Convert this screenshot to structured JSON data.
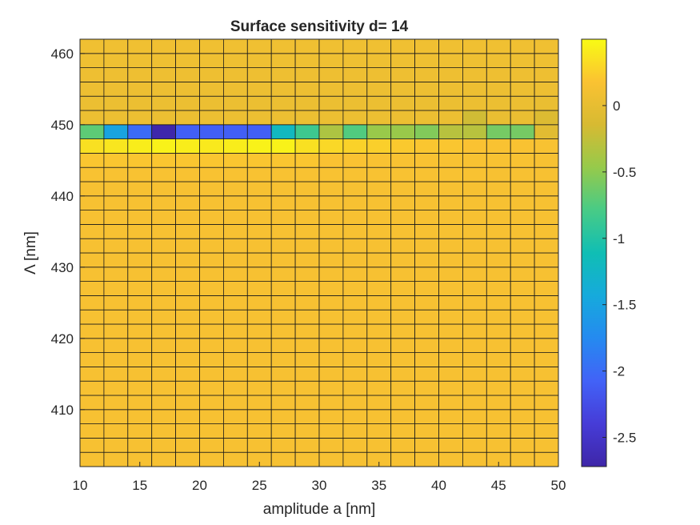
{
  "chart_data": {
    "type": "heatmap",
    "title": "Surface sensitivity d= 14",
    "xlabel": "amplitude a [nm]",
    "ylabel": "Λ [nm]",
    "x_ticks": [
      10,
      15,
      20,
      25,
      30,
      35,
      40,
      45,
      50
    ],
    "y_ticks": [
      410,
      420,
      430,
      440,
      450,
      460
    ],
    "colorbar_ticks": [
      "0",
      "-0.5",
      "-1",
      "-1.5",
      "-2",
      "-2.5"
    ],
    "colorbar_tick_values": [
      0,
      -0.5,
      -1,
      -1.5,
      -2,
      -2.5
    ],
    "clim": [
      -2.72,
      0.5
    ],
    "colormap": "parula",
    "xlim": [
      10,
      50
    ],
    "ylim": [
      402,
      462
    ],
    "x_edges": [
      10,
      12,
      14,
      16,
      18,
      20,
      22,
      24,
      26,
      28,
      30,
      32,
      34,
      36,
      38,
      40,
      42,
      44,
      46,
      48,
      50
    ],
    "y_edges": [
      402,
      404,
      406,
      408,
      410,
      412,
      414,
      416,
      418,
      420,
      422,
      424,
      426,
      428,
      430,
      432,
      434,
      436,
      438,
      440,
      442,
      444,
      446,
      448,
      450,
      452,
      454,
      456,
      458,
      460,
      462
    ],
    "y_rows_note_free": true,
    "rows": [
      {
        "y": 402,
        "values": [
          0.15,
          0.15,
          0.15,
          0.15,
          0.15,
          0.15,
          0.15,
          0.15,
          0.15,
          0.15,
          0.15,
          0.15,
          0.15,
          0.15,
          0.15,
          0.15,
          0.15,
          0.15,
          0.15,
          0.15
        ]
      },
      {
        "y": 404,
        "values": [
          0.15,
          0.15,
          0.15,
          0.15,
          0.15,
          0.15,
          0.15,
          0.15,
          0.15,
          0.15,
          0.15,
          0.15,
          0.15,
          0.15,
          0.15,
          0.15,
          0.15,
          0.15,
          0.15,
          0.15
        ]
      },
      {
        "y": 406,
        "values": [
          0.15,
          0.15,
          0.15,
          0.15,
          0.15,
          0.15,
          0.15,
          0.15,
          0.15,
          0.15,
          0.15,
          0.15,
          0.15,
          0.15,
          0.15,
          0.15,
          0.15,
          0.15,
          0.15,
          0.15
        ]
      },
      {
        "y": 408,
        "values": [
          0.15,
          0.15,
          0.15,
          0.15,
          0.15,
          0.15,
          0.15,
          0.15,
          0.15,
          0.15,
          0.15,
          0.15,
          0.15,
          0.15,
          0.15,
          0.15,
          0.15,
          0.15,
          0.15,
          0.15
        ]
      },
      {
        "y": 410,
        "values": [
          0.15,
          0.15,
          0.15,
          0.15,
          0.15,
          0.15,
          0.15,
          0.15,
          0.15,
          0.15,
          0.15,
          0.15,
          0.15,
          0.15,
          0.15,
          0.15,
          0.15,
          0.15,
          0.15,
          0.15
        ]
      },
      {
        "y": 412,
        "values": [
          0.15,
          0.15,
          0.15,
          0.15,
          0.15,
          0.15,
          0.15,
          0.15,
          0.15,
          0.15,
          0.15,
          0.15,
          0.15,
          0.15,
          0.15,
          0.15,
          0.15,
          0.15,
          0.15,
          0.15
        ]
      },
      {
        "y": 414,
        "values": [
          0.15,
          0.15,
          0.15,
          0.15,
          0.15,
          0.15,
          0.15,
          0.15,
          0.15,
          0.15,
          0.15,
          0.15,
          0.15,
          0.15,
          0.15,
          0.15,
          0.15,
          0.15,
          0.15,
          0.15
        ]
      },
      {
        "y": 416,
        "values": [
          0.15,
          0.15,
          0.15,
          0.15,
          0.15,
          0.15,
          0.15,
          0.15,
          0.15,
          0.15,
          0.15,
          0.15,
          0.15,
          0.15,
          0.15,
          0.15,
          0.15,
          0.15,
          0.15,
          0.15
        ]
      },
      {
        "y": 418,
        "values": [
          0.15,
          0.15,
          0.15,
          0.15,
          0.15,
          0.15,
          0.15,
          0.15,
          0.15,
          0.15,
          0.15,
          0.15,
          0.15,
          0.15,
          0.15,
          0.15,
          0.15,
          0.15,
          0.15,
          0.15
        ]
      },
      {
        "y": 420,
        "values": [
          0.15,
          0.15,
          0.15,
          0.15,
          0.15,
          0.15,
          0.15,
          0.15,
          0.15,
          0.15,
          0.15,
          0.15,
          0.15,
          0.15,
          0.15,
          0.15,
          0.15,
          0.15,
          0.15,
          0.15
        ]
      },
      {
        "y": 422,
        "values": [
          0.15,
          0.15,
          0.15,
          0.15,
          0.15,
          0.15,
          0.15,
          0.15,
          0.15,
          0.15,
          0.15,
          0.15,
          0.15,
          0.15,
          0.15,
          0.15,
          0.15,
          0.15,
          0.15,
          0.15
        ]
      },
      {
        "y": 424,
        "values": [
          0.15,
          0.15,
          0.15,
          0.15,
          0.15,
          0.15,
          0.15,
          0.15,
          0.15,
          0.15,
          0.15,
          0.15,
          0.15,
          0.15,
          0.15,
          0.15,
          0.15,
          0.15,
          0.15,
          0.15
        ]
      },
      {
        "y": 426,
        "values": [
          0.15,
          0.15,
          0.15,
          0.15,
          0.15,
          0.15,
          0.15,
          0.15,
          0.15,
          0.15,
          0.15,
          0.15,
          0.15,
          0.15,
          0.15,
          0.15,
          0.15,
          0.15,
          0.15,
          0.15
        ]
      },
      {
        "y": 428,
        "values": [
          0.15,
          0.15,
          0.15,
          0.15,
          0.15,
          0.15,
          0.15,
          0.15,
          0.15,
          0.15,
          0.15,
          0.15,
          0.15,
          0.15,
          0.15,
          0.15,
          0.15,
          0.15,
          0.15,
          0.15
        ]
      },
      {
        "y": 430,
        "values": [
          0.15,
          0.15,
          0.15,
          0.15,
          0.15,
          0.15,
          0.15,
          0.15,
          0.15,
          0.15,
          0.15,
          0.15,
          0.15,
          0.15,
          0.15,
          0.15,
          0.15,
          0.15,
          0.15,
          0.15
        ]
      },
      {
        "y": 432,
        "values": [
          0.15,
          0.15,
          0.15,
          0.15,
          0.15,
          0.15,
          0.15,
          0.15,
          0.15,
          0.15,
          0.15,
          0.15,
          0.15,
          0.15,
          0.15,
          0.15,
          0.15,
          0.15,
          0.15,
          0.15
        ]
      },
      {
        "y": 434,
        "values": [
          0.15,
          0.15,
          0.15,
          0.15,
          0.15,
          0.15,
          0.15,
          0.15,
          0.15,
          0.15,
          0.15,
          0.15,
          0.15,
          0.15,
          0.15,
          0.15,
          0.15,
          0.15,
          0.15,
          0.15
        ]
      },
      {
        "y": 436,
        "values": [
          0.15,
          0.15,
          0.15,
          0.15,
          0.15,
          0.15,
          0.15,
          0.15,
          0.15,
          0.15,
          0.15,
          0.15,
          0.15,
          0.15,
          0.15,
          0.15,
          0.15,
          0.15,
          0.15,
          0.15
        ]
      },
      {
        "y": 438,
        "values": [
          0.15,
          0.15,
          0.15,
          0.15,
          0.15,
          0.15,
          0.15,
          0.15,
          0.15,
          0.15,
          0.15,
          0.15,
          0.15,
          0.15,
          0.15,
          0.15,
          0.15,
          0.15,
          0.15,
          0.15
        ]
      },
      {
        "y": 440,
        "values": [
          0.15,
          0.15,
          0.15,
          0.15,
          0.15,
          0.15,
          0.15,
          0.15,
          0.15,
          0.15,
          0.15,
          0.15,
          0.15,
          0.15,
          0.15,
          0.15,
          0.15,
          0.15,
          0.15,
          0.15
        ]
      },
      {
        "y": 442,
        "values": [
          0.16,
          0.16,
          0.16,
          0.16,
          0.16,
          0.16,
          0.16,
          0.16,
          0.16,
          0.16,
          0.16,
          0.16,
          0.16,
          0.16,
          0.16,
          0.16,
          0.16,
          0.15,
          0.15,
          0.15
        ]
      },
      {
        "y": 444,
        "values": [
          0.2,
          0.2,
          0.2,
          0.2,
          0.2,
          0.2,
          0.2,
          0.2,
          0.2,
          0.2,
          0.18,
          0.18,
          0.17,
          0.17,
          0.17,
          0.16,
          0.16,
          0.16,
          0.16,
          0.15
        ]
      },
      {
        "y": 446,
        "values": [
          0.35,
          0.38,
          0.42,
          0.45,
          0.42,
          0.4,
          0.42,
          0.45,
          0.45,
          0.35,
          0.3,
          0.27,
          0.25,
          0.22,
          0.2,
          0.2,
          0.18,
          0.17,
          0.17,
          0.16
        ]
      },
      {
        "y": 448,
        "values": [
          -0.7,
          -1.5,
          -2.0,
          -2.7,
          -2.1,
          -2.1,
          -2.1,
          -2.1,
          -1.2,
          -0.85,
          -0.35,
          -0.75,
          -0.45,
          -0.45,
          -0.55,
          -0.3,
          -0.3,
          -0.6,
          -0.6,
          -0.05
        ]
      },
      {
        "y": 450,
        "values": [
          0.05,
          0.05,
          0.05,
          0.05,
          0.05,
          0.05,
          0.05,
          0.05,
          0.05,
          0.05,
          0.05,
          0.05,
          0.05,
          0.05,
          0.05,
          0.05,
          -0.18,
          0.03,
          0.03,
          -0.1
        ]
      },
      {
        "y": 452,
        "values": [
          0.05,
          0.05,
          0.05,
          0.05,
          0.05,
          0.05,
          0.05,
          0.05,
          0.05,
          0.05,
          0.05,
          0.05,
          0.05,
          0.05,
          0.05,
          0.05,
          0.05,
          0.05,
          0.05,
          0.03
        ]
      },
      {
        "y": 454,
        "values": [
          0.06,
          0.06,
          0.06,
          0.06,
          0.06,
          0.06,
          0.06,
          0.06,
          0.06,
          0.06,
          0.06,
          0.06,
          0.06,
          0.06,
          0.06,
          0.06,
          0.06,
          0.06,
          0.06,
          0.06
        ]
      },
      {
        "y": 456,
        "values": [
          0.07,
          0.07,
          0.07,
          0.07,
          0.07,
          0.07,
          0.07,
          0.07,
          0.07,
          0.07,
          0.07,
          0.07,
          0.07,
          0.07,
          0.07,
          0.07,
          0.07,
          0.07,
          0.07,
          0.07
        ]
      },
      {
        "y": 458,
        "values": [
          0.08,
          0.08,
          0.08,
          0.08,
          0.08,
          0.08,
          0.08,
          0.08,
          0.08,
          0.08,
          0.08,
          0.08,
          0.08,
          0.08,
          0.08,
          0.08,
          0.08,
          0.08,
          0.08,
          0.08
        ]
      },
      {
        "y": 460,
        "values": [
          0.09,
          0.09,
          0.09,
          0.09,
          0.09,
          0.09,
          0.09,
          0.09,
          0.09,
          0.09,
          0.09,
          0.09,
          0.09,
          0.09,
          0.09,
          0.09,
          0.09,
          0.09,
          0.09,
          0.09
        ]
      }
    ]
  }
}
